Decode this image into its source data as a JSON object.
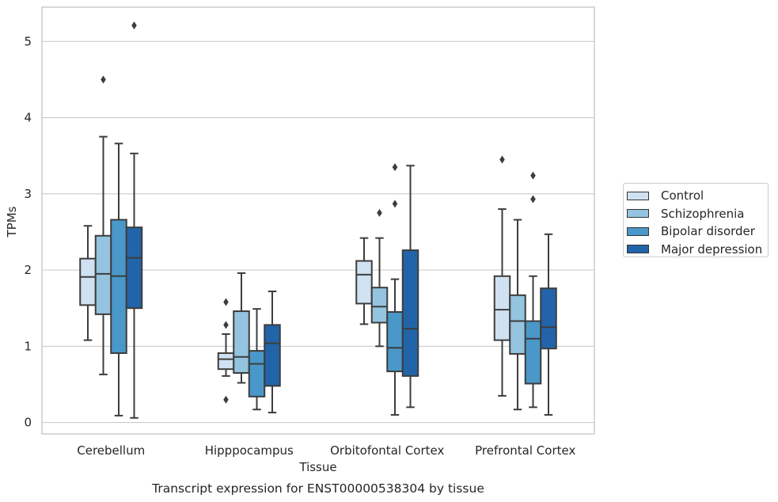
{
  "chart_data": {
    "type": "box",
    "caption": "Transcript expression for ENST00000538304 by tissue",
    "xlabel": "Tissue",
    "ylabel": "TPMs",
    "ylim": [
      -0.15,
      5.45
    ],
    "yticks": [
      0,
      1,
      2,
      3,
      4,
      5
    ],
    "grid": true,
    "legend_placement": "right",
    "categories": [
      "Cerebellum",
      "Hipppocampus",
      "Orbitofontal Cortex",
      "Prefrontal Cortex"
    ],
    "series": [
      {
        "name": "Control",
        "color": "#d0e1f2",
        "boxes": [
          {
            "whislo": 1.08,
            "q1": 1.54,
            "med": 1.91,
            "q3": 2.15,
            "whishi": 2.58,
            "fliers": []
          },
          {
            "whislo": 0.61,
            "q1": 0.7,
            "med": 0.83,
            "q3": 0.91,
            "whishi": 1.16,
            "fliers": [
              0.3,
              1.28,
              1.58
            ]
          },
          {
            "whislo": 1.29,
            "q1": 1.56,
            "med": 1.94,
            "q3": 2.12,
            "whishi": 2.42,
            "fliers": []
          },
          {
            "whislo": 0.35,
            "q1": 1.08,
            "med": 1.48,
            "q3": 1.92,
            "whishi": 2.8,
            "fliers": [
              3.45
            ]
          }
        ]
      },
      {
        "name": "Schizophrenia",
        "color": "#94c4df",
        "boxes": [
          {
            "whislo": 0.63,
            "q1": 1.42,
            "med": 1.95,
            "q3": 2.45,
            "whishi": 3.75,
            "fliers": [
              4.5
            ]
          },
          {
            "whislo": 0.52,
            "q1": 0.65,
            "med": 0.86,
            "q3": 1.46,
            "whishi": 1.96,
            "fliers": []
          },
          {
            "whislo": 1.0,
            "q1": 1.31,
            "med": 1.52,
            "q3": 1.77,
            "whishi": 2.42,
            "fliers": [
              2.75
            ]
          },
          {
            "whislo": 0.17,
            "q1": 0.9,
            "med": 1.33,
            "q3": 1.67,
            "whishi": 2.66,
            "fliers": []
          }
        ]
      },
      {
        "name": "Bipolar disorder",
        "color": "#4a98c9",
        "boxes": [
          {
            "whislo": 0.09,
            "q1": 0.91,
            "med": 1.92,
            "q3": 2.66,
            "whishi": 3.66,
            "fliers": []
          },
          {
            "whislo": 0.17,
            "q1": 0.34,
            "med": 0.77,
            "q3": 0.94,
            "whishi": 1.49,
            "fliers": []
          },
          {
            "whislo": 0.1,
            "q1": 0.67,
            "med": 0.98,
            "q3": 1.45,
            "whishi": 1.88,
            "fliers": [
              2.87,
              3.35
            ]
          },
          {
            "whislo": 0.2,
            "q1": 0.51,
            "med": 1.1,
            "q3": 1.33,
            "whishi": 1.92,
            "fliers": [
              2.93,
              3.24
            ]
          }
        ]
      },
      {
        "name": "Major depression",
        "color": "#2264a9",
        "boxes": [
          {
            "whislo": 0.06,
            "q1": 1.5,
            "med": 2.16,
            "q3": 2.56,
            "whishi": 3.53,
            "fliers": [
              5.21
            ]
          },
          {
            "whislo": 0.13,
            "q1": 0.48,
            "med": 1.04,
            "q3": 1.28,
            "whishi": 1.72,
            "fliers": []
          },
          {
            "whislo": 0.2,
            "q1": 0.61,
            "med": 1.23,
            "q3": 2.26,
            "whishi": 3.37,
            "fliers": []
          },
          {
            "whislo": 0.1,
            "q1": 0.97,
            "med": 1.25,
            "q3": 1.76,
            "whishi": 2.47,
            "fliers": []
          }
        ]
      }
    ]
  }
}
